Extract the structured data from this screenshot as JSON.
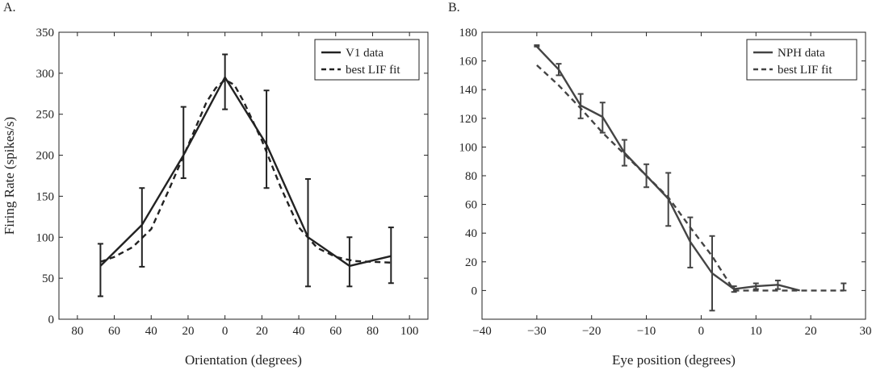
{
  "chart_data": [
    {
      "panel_label": "A.",
      "type": "line",
      "xlabel": "Orientation (degrees)",
      "ylabel": "Firing Rate (spikes/s)",
      "x_tick_labels": [
        "80",
        "60",
        "40",
        "20",
        "0",
        "20",
        "40",
        "60",
        "80",
        "100"
      ],
      "y_tick_labels": [
        "0",
        "50",
        "100",
        "150",
        "200",
        "250",
        "300",
        "350"
      ],
      "xlim": [
        -90,
        110
      ],
      "ylim": [
        0,
        350
      ],
      "grid": false,
      "legend_position": "top-right",
      "series": [
        {
          "name": "V1 data",
          "style": "solid",
          "color": "#222222",
          "x": [
            -67.5,
            -45,
            -22.5,
            0,
            22.5,
            45,
            67.5,
            90
          ],
          "y": [
            65,
            115,
            200,
            295,
            213,
            100,
            65,
            77
          ],
          "err_low": [
            28,
            64,
            172,
            256,
            160,
            40,
            40,
            44
          ],
          "err_high": [
            92,
            160,
            259,
            323,
            279,
            171,
            100,
            112
          ]
        },
        {
          "name": "best LIF fit",
          "style": "dashed",
          "color": "#222222",
          "x": [
            -67.5,
            -60,
            -50,
            -40,
            -30,
            -20,
            -10,
            -5,
            0,
            5,
            10,
            20,
            30,
            40,
            50,
            60,
            70,
            80,
            90
          ],
          "y": [
            70,
            76,
            88,
            110,
            160,
            212,
            265,
            282,
            292,
            286,
            266,
            218,
            162,
            112,
            87,
            76,
            71,
            70,
            69
          ]
        }
      ]
    },
    {
      "panel_label": "B.",
      "type": "line",
      "xlabel": "Eye position (degrees)",
      "ylabel": "",
      "x_tick_labels": [
        "−40",
        "−30",
        "−20",
        "−10",
        "0",
        "10",
        "20",
        "30"
      ],
      "y_tick_labels": [
        "0",
        "20",
        "40",
        "60",
        "80",
        "100",
        "120",
        "140",
        "160",
        "180"
      ],
      "xlim": [
        -40,
        30
      ],
      "ylim": [
        -20,
        180
      ],
      "grid": false,
      "legend_position": "top-right",
      "series": [
        {
          "name": "NPH data",
          "style": "solid",
          "color": "#444444",
          "x": [
            -30,
            -26,
            -22,
            -18,
            -14,
            -10,
            -6,
            -2,
            2,
            6,
            10,
            14,
            18
          ],
          "y": [
            170,
            154,
            129,
            121,
            96,
            80,
            64,
            34,
            12,
            1,
            3,
            4,
            0
          ],
          "err_low": [
            170,
            150,
            120,
            110,
            87,
            72,
            45,
            16,
            -14,
            -1,
            1,
            1,
            0
          ],
          "err_high": [
            171,
            158,
            137,
            131,
            105,
            88,
            82,
            51,
            38,
            3,
            5,
            7,
            0
          ]
        },
        {
          "name": "best LIF fit",
          "style": "dashed",
          "color": "#444444",
          "x": [
            -30,
            -26,
            -22,
            -18,
            -14,
            -10,
            -6,
            -2,
            2,
            6,
            10,
            14,
            18,
            22,
            26
          ],
          "y": [
            157,
            143,
            127,
            110,
            95,
            80,
            65,
            44,
            24,
            0,
            0,
            0,
            0,
            0,
            0
          ],
          "err_points_x": [
            26
          ],
          "err_low": [
            0
          ],
          "err_high": [
            5
          ]
        }
      ]
    }
  ]
}
